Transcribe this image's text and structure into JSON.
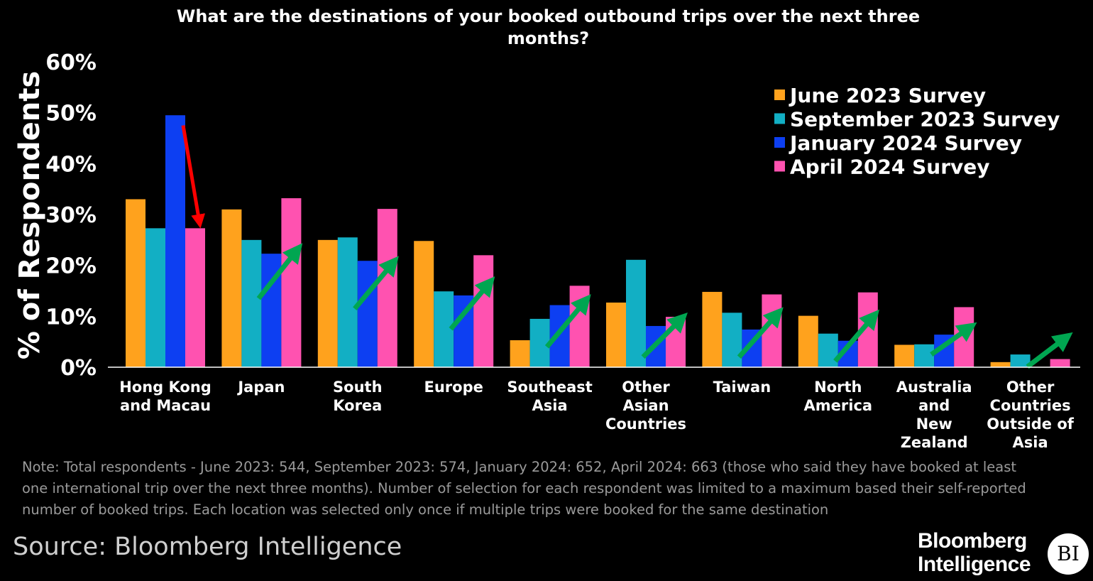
{
  "chart_data": {
    "type": "bar",
    "title": "What are the destinations of your booked outbound trips over the next three months?",
    "ylabel": "% of Respondents",
    "ylim": [
      0,
      60
    ],
    "yticks": [
      "0%",
      "10%",
      "20%",
      "30%",
      "40%",
      "50%",
      "60%"
    ],
    "grid": false,
    "legend_position": "top-right",
    "categories": [
      [
        "Hong Kong",
        "and Macau"
      ],
      [
        "Japan"
      ],
      [
        "South",
        "Korea"
      ],
      [
        "Europe"
      ],
      [
        "Southeast",
        "Asia"
      ],
      [
        "Other",
        "Asian",
        "Countries"
      ],
      [
        "Taiwan"
      ],
      [
        "North",
        "America"
      ],
      [
        "Australia",
        "and",
        "New",
        "Zealand"
      ],
      [
        "Other",
        "Countries",
        "Outside of",
        "Asia"
      ]
    ],
    "series": [
      {
        "name": "June 2023 Survey",
        "color": "#FFA21D",
        "values": [
          33,
          31,
          25,
          24.8,
          5.3,
          12.7,
          14.8,
          10.1,
          4.4,
          1
        ]
      },
      {
        "name": "September 2023 Survey",
        "color": "#12AFC4",
        "values": [
          27.3,
          25,
          25.5,
          14.9,
          9.5,
          21.1,
          10.7,
          6.6,
          4.5,
          2.5
        ]
      },
      {
        "name": "January 2024 Survey",
        "color": "#0D3FF2",
        "values": [
          49.5,
          22.3,
          20.9,
          14.1,
          12.2,
          8.1,
          7.4,
          5.2,
          6.4,
          0
        ]
      },
      {
        "name": "April 2024 Survey",
        "color": "#FF52B0",
        "values": [
          27.3,
          33.2,
          31.1,
          22,
          16,
          9.9,
          14.3,
          14.7,
          11.8,
          1.6
        ]
      }
    ],
    "annotations": [
      {
        "type": "arrow",
        "color": "#FF0000",
        "from": {
          "category": 0,
          "value": 47.5
        },
        "to": {
          "category": 0,
          "value": 28.5
        }
      },
      {
        "type": "arrow",
        "color": "#00A651",
        "from": {
          "category": 1,
          "value": 13.5
        },
        "to": {
          "category": 1,
          "value": 23
        }
      },
      {
        "type": "arrow",
        "color": "#00A651",
        "from": {
          "category": 2,
          "value": 11.5
        },
        "to": {
          "category": 2,
          "value": 20.5
        }
      },
      {
        "type": "arrow",
        "color": "#00A651",
        "from": {
          "category": 3,
          "value": 7.5
        },
        "to": {
          "category": 3,
          "value": 16.5
        }
      },
      {
        "type": "arrow",
        "color": "#00A651",
        "from": {
          "category": 4,
          "value": 4
        },
        "to": {
          "category": 4,
          "value": 13
        }
      },
      {
        "type": "arrow",
        "color": "#00A651",
        "from": {
          "category": 5,
          "value": 2
        },
        "to": {
          "category": 5,
          "value": 9.5
        }
      },
      {
        "type": "arrow",
        "color": "#00A651",
        "from": {
          "category": 6,
          "value": 2
        },
        "to": {
          "category": 6,
          "value": 10.5
        }
      },
      {
        "type": "arrow",
        "color": "#00A651",
        "from": {
          "category": 7,
          "value": 1.2
        },
        "to": {
          "category": 7,
          "value": 10
        }
      },
      {
        "type": "arrow",
        "color": "#00A651",
        "from": {
          "category": 8,
          "value": 2.5
        },
        "to": {
          "category": 8,
          "value": 7.8
        }
      },
      {
        "type": "arrow",
        "color": "#00A651",
        "from": {
          "category": 9,
          "value": 0.1
        },
        "to": {
          "category": 9,
          "value": 5.8
        }
      }
    ]
  },
  "note": "Note: Total respondents - June 2023: 544, September 2023: 574, January 2024: 652, April 2024: 663 (those who said they have booked at least one international trip over the next three months). Number of selection for each respondent was limited to a maximum based their self-reported number of booked trips. Each location was selected only once if multiple trips were booked for the same destination",
  "source": "Source: Bloomberg Intelligence",
  "brand": {
    "name_line1": "Bloomberg",
    "name_line2": "Intelligence",
    "badge": "BI"
  }
}
